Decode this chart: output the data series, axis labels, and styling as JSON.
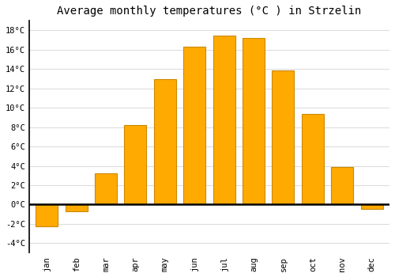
{
  "title": "Average monthly temperatures (°C ) in Strzelin",
  "months": [
    "jan",
    "feb",
    "mar",
    "apr",
    "may",
    "jun",
    "jul",
    "aug",
    "sep",
    "oct",
    "nov",
    "dec"
  ],
  "values": [
    -2.3,
    -0.7,
    3.2,
    8.2,
    13.0,
    16.3,
    17.5,
    17.2,
    13.9,
    9.4,
    3.9,
    -0.5
  ],
  "bar_color": "#FFAA00",
  "bar_edge_color": "#CC8800",
  "background_color": "#FFFFFF",
  "plot_bg_color": "#FFFFFF",
  "grid_color": "#DDDDDD",
  "zero_line_color": "#000000",
  "left_spine_color": "#000000",
  "ylim": [
    -5,
    19
  ],
  "yticks": [
    -4,
    -2,
    0,
    2,
    4,
    6,
    8,
    10,
    12,
    14,
    16,
    18
  ],
  "title_fontsize": 10,
  "tick_fontsize": 7.5,
  "bar_width": 0.75
}
